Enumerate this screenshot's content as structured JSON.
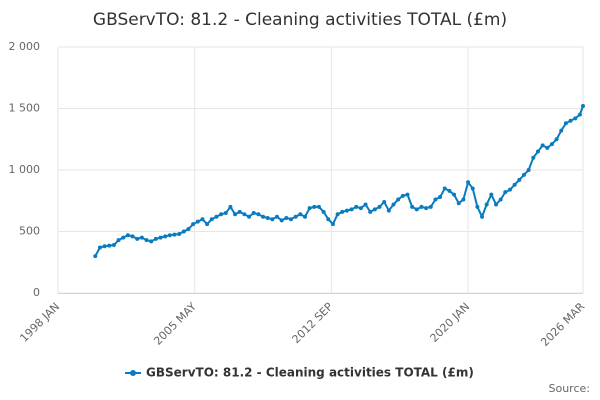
{
  "chart_data": {
    "type": "line",
    "title": "GBServTO: 81.2 - Cleaning activities TOTAL (£m)",
    "source": "Source:",
    "x": [
      "2000 JAN",
      "2000 APR",
      "2000 JUL",
      "2000 OCT",
      "2001 JAN",
      "2001 APR",
      "2001 JUL",
      "2001 OCT",
      "2002 JAN",
      "2002 APR",
      "2002 JUL",
      "2002 OCT",
      "2003 JAN",
      "2003 APR",
      "2003 JUL",
      "2003 OCT",
      "2004 JAN",
      "2004 APR",
      "2004 JUL",
      "2004 OCT",
      "2005 JAN",
      "2005 APR",
      "2005 JUL",
      "2005 OCT",
      "2006 JAN",
      "2006 APR",
      "2006 JUL",
      "2006 OCT",
      "2007 JAN",
      "2007 APR",
      "2007 JUL",
      "2007 OCT",
      "2008 JAN",
      "2008 APR",
      "2008 JUL",
      "2008 OCT",
      "2009 JAN",
      "2009 APR",
      "2009 JUL",
      "2009 OCT",
      "2010 JAN",
      "2010 APR",
      "2010 JUL",
      "2010 OCT",
      "2011 JAN",
      "2011 APR",
      "2011 JUL",
      "2011 OCT",
      "2012 JAN",
      "2012 APR",
      "2012 JUL",
      "2012 OCT",
      "2013 JAN",
      "2013 APR",
      "2013 JUL",
      "2013 OCT",
      "2014 JAN",
      "2014 APR",
      "2014 JUL",
      "2014 OCT",
      "2015 JAN",
      "2015 APR",
      "2015 JUL",
      "2015 OCT",
      "2016 JAN",
      "2016 APR",
      "2016 JUL",
      "2016 OCT",
      "2017 JAN",
      "2017 APR",
      "2017 JUL",
      "2017 OCT",
      "2018 JAN",
      "2018 APR",
      "2018 JUL",
      "2018 OCT",
      "2019 JAN",
      "2019 APR",
      "2019 JUL",
      "2019 OCT",
      "2020 JAN",
      "2020 APR",
      "2020 JUL",
      "2020 OCT",
      "2021 JAN",
      "2021 APR",
      "2021 JUL",
      "2021 OCT",
      "2022 JAN",
      "2022 APR",
      "2022 JUL",
      "2022 OCT",
      "2023 JAN",
      "2023 APR",
      "2023 JUL",
      "2023 OCT",
      "2024 JAN",
      "2024 APR",
      "2024 JUL",
      "2024 OCT",
      "2025 JAN",
      "2025 APR",
      "2025 JUL",
      "2025 OCT",
      "2026 JAN",
      "2026 MAR"
    ],
    "series": [
      {
        "name": "GBServTO: 81.2 - Cleaning activities TOTAL (£m)",
        "color": "#0b7bbf",
        "values": [
          300,
          370,
          380,
          385,
          390,
          430,
          450,
          470,
          460,
          440,
          450,
          430,
          420,
          440,
          450,
          460,
          470,
          475,
          480,
          500,
          520,
          560,
          580,
          600,
          560,
          600,
          620,
          640,
          650,
          700,
          640,
          660,
          640,
          620,
          650,
          640,
          620,
          610,
          600,
          620,
          590,
          610,
          600,
          620,
          640,
          620,
          690,
          700,
          700,
          660,
          600,
          560,
          640,
          660,
          670,
          680,
          700,
          690,
          720,
          660,
          680,
          700,
          740,
          670,
          720,
          760,
          790,
          800,
          700,
          680,
          700,
          690,
          700,
          760,
          780,
          850,
          830,
          800,
          730,
          760,
          900,
          850,
          700,
          620,
          720,
          800,
          720,
          760,
          820,
          840,
          880,
          920,
          960,
          1000,
          1100,
          1150,
          1200,
          1180,
          1210,
          1250,
          1320,
          1380,
          1400,
          1420,
          1450,
          1520
        ]
      }
    ],
    "ylim": [
      0,
      2000
    ],
    "yticks": [
      0,
      500,
      {
        "value": 1000,
        "label": "1 000"
      },
      {
        "value": 1500,
        "label": "1 500"
      },
      {
        "value": 2000,
        "label": "2 000"
      }
    ],
    "xticks": [
      "1998 JAN",
      "2005 MAY",
      "2012 SEP",
      "2020 JAN",
      "2026 MAR"
    ],
    "grid": true
  }
}
